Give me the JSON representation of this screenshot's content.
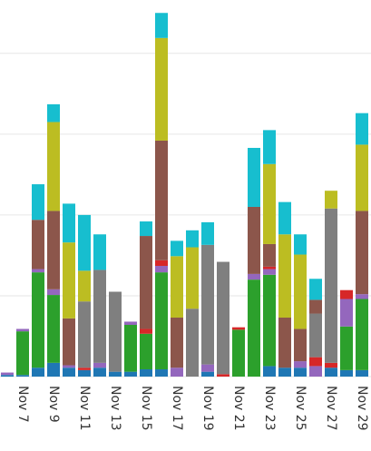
{
  "chart_data": {
    "type": "stacked-bar",
    "categories": [
      null,
      "Nov 7",
      null,
      "Nov 9",
      null,
      "Nov 11",
      null,
      "Nov 13",
      null,
      "Nov 15",
      null,
      "Nov 17",
      null,
      "Nov 19",
      null,
      "Nov 21",
      null,
      "Nov 23",
      null,
      "Nov 25",
      null,
      "Nov 27",
      null,
      "Nov 29"
    ],
    "series": [
      {
        "color": "#1f77b4",
        "values": [
          0.2,
          0.2,
          1.1,
          1.7,
          1.1,
          0.8,
          1.1,
          0.6,
          0.6,
          0.9,
          0.9,
          0,
          0,
          0.6,
          0,
          0,
          0,
          1.3,
          1.1,
          1.1,
          0,
          1.1,
          0.8,
          0.8
        ]
      },
      {
        "color": "#2ca02c",
        "values": [
          0,
          5.4,
          11.8,
          8.4,
          0,
          0,
          0,
          0,
          5.8,
          4.4,
          12.0,
          0,
          0,
          0,
          0,
          5.8,
          12.0,
          11.3,
          0,
          0,
          0,
          0,
          5.4,
          8.8
        ]
      },
      {
        "color": "#9467bd",
        "values": [
          0.3,
          0.3,
          0.4,
          0.7,
          0.3,
          0,
          0.6,
          0,
          0.4,
          0,
          0.8,
          1.1,
          0,
          0.9,
          0,
          0,
          0.7,
          0.7,
          0,
          0.8,
          1.3,
          0,
          3.4,
          0.6
        ]
      },
      {
        "color": "#d62728",
        "values": [
          0,
          0,
          0,
          0,
          0,
          0.3,
          0,
          0,
          0,
          0.6,
          0.7,
          0,
          0,
          0,
          0.3,
          0.3,
          0,
          0.3,
          0,
          0,
          1.1,
          0.6,
          1.1,
          0
        ]
      },
      {
        "color": "#7f7f7f",
        "values": [
          0,
          0,
          0,
          0,
          0,
          8.2,
          11.5,
          9.9,
          0,
          0,
          0,
          0,
          8.4,
          14.8,
          13.9,
          0,
          0,
          0,
          0,
          0,
          5.4,
          19.1,
          0,
          0
        ]
      },
      {
        "color": "#8c564b",
        "values": [
          0,
          0,
          6.1,
          9.7,
          5.8,
          0,
          0,
          0,
          0,
          11.5,
          14.8,
          6.2,
          0,
          0,
          0,
          0,
          8.3,
          2.8,
          6.2,
          4.0,
          1.7,
          0,
          0,
          10.3
        ]
      },
      {
        "color": "#bcbd22",
        "values": [
          0,
          0,
          0,
          11.0,
          9.4,
          3.8,
          0,
          0,
          0,
          0,
          12.7,
          7.6,
          7.6,
          0,
          0,
          0,
          0,
          9.9,
          10.3,
          9.2,
          0,
          2.2,
          0,
          8.2
        ]
      },
      {
        "color": "#17becf",
        "values": [
          0,
          0,
          4.4,
          2.2,
          4.8,
          6.9,
          4.4,
          0,
          0,
          1.8,
          3.1,
          1.9,
          2.1,
          2.8,
          0,
          0,
          7.3,
          4.2,
          4.0,
          2.5,
          2.6,
          0,
          0,
          3.9
        ]
      }
    ],
    "ylim": [
      0,
      46.6
    ],
    "yticks": [
      0,
      10,
      20,
      30,
      40
    ],
    "grid": true
  }
}
